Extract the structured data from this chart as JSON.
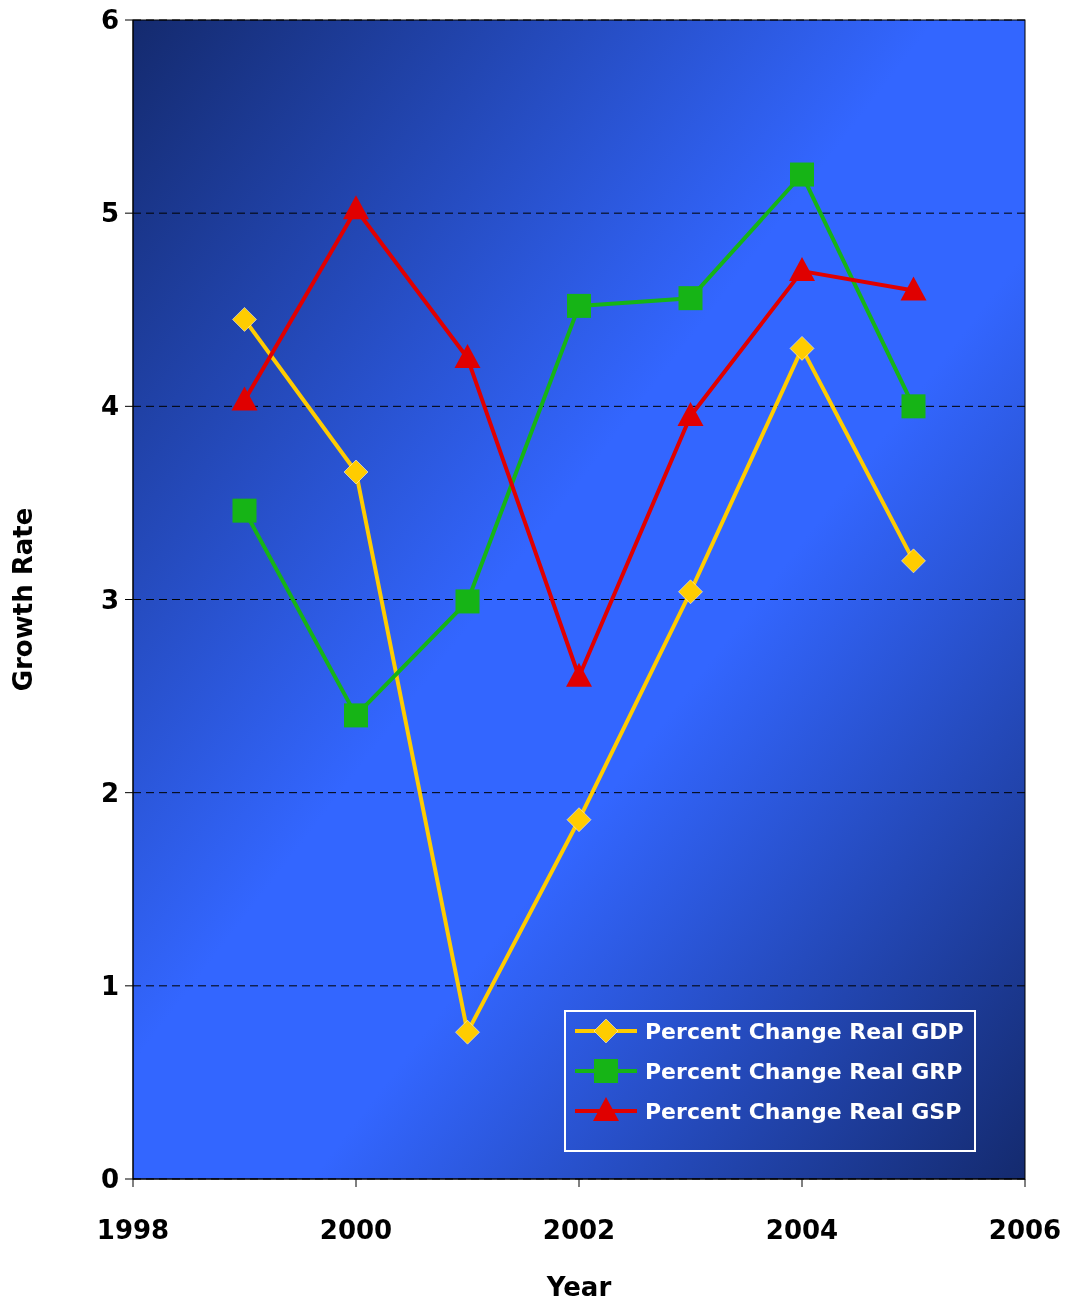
{
  "chart_data": {
    "type": "line",
    "xlabel": "Year",
    "ylabel": "Growth Rate",
    "x": [
      1999,
      2000,
      2001,
      2002,
      2003,
      2004,
      2005
    ],
    "xlim": [
      1998,
      2006
    ],
    "xticks": [
      1998,
      2000,
      2002,
      2004,
      2006
    ],
    "ylim": [
      0,
      6
    ],
    "yticks": [
      0,
      1,
      2,
      3,
      4,
      5,
      6
    ],
    "grid": "y",
    "legend": "bottom right",
    "series": [
      {
        "name": "Percent Change Real GDP",
        "color": "#ffcc00",
        "marker": "diamond",
        "values": [
          4.45,
          3.66,
          0.76,
          1.86,
          3.04,
          4.3,
          3.2
        ]
      },
      {
        "name": "Percent Change Real GRP",
        "color": "#16b416",
        "marker": "square",
        "values": [
          3.46,
          2.4,
          2.99,
          4.52,
          4.56,
          5.2,
          4.0
        ]
      },
      {
        "name": "Percent Change Real GSP",
        "color": "#e00000",
        "marker": "triangle",
        "values": [
          4.03,
          5.02,
          4.25,
          2.6,
          3.95,
          4.7,
          4.6
        ]
      }
    ]
  }
}
